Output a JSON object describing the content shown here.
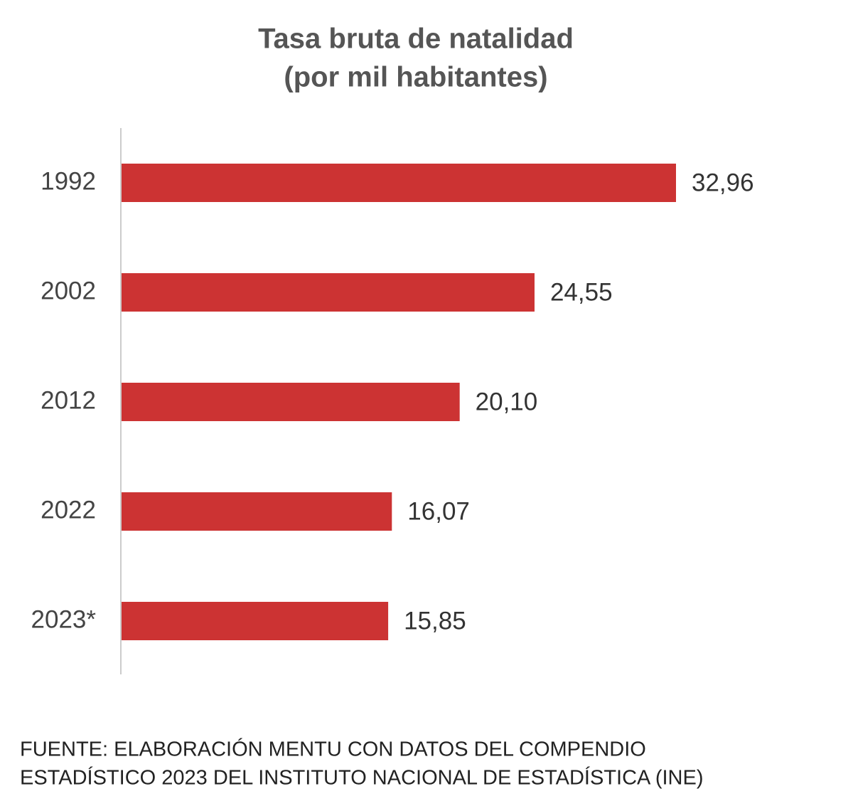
{
  "chart_data": {
    "type": "bar",
    "orientation": "horizontal",
    "title": "Tasa bruta de natalidad",
    "subtitle": "(por mil habitantes)",
    "categories": [
      "1992",
      "2002",
      "2012",
      "2022",
      "2023*"
    ],
    "values": [
      32.96,
      24.55,
      20.1,
      16.07,
      15.85
    ],
    "value_labels": [
      "32,96",
      "24,55",
      "20,10",
      "16,07",
      "15,85"
    ],
    "color": "#cc3333",
    "source": [
      "FUENTE: ELABORACIÓN MENTU CON DATOS DEL COMPENDIO",
      "ESTADÍSTICO 2023 DEL INSTITUTO NACIONAL DE ESTADÍSTICA (INE)"
    ]
  }
}
